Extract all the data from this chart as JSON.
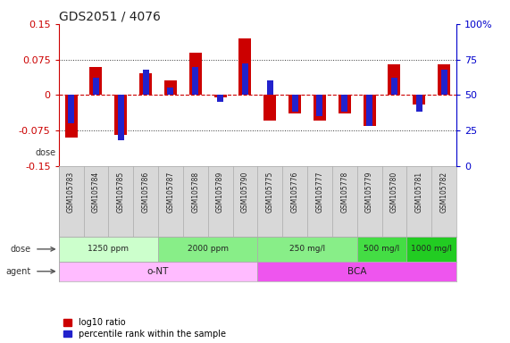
{
  "title": "GDS2051 / 4076",
  "samples": [
    "GSM105783",
    "GSM105784",
    "GSM105785",
    "GSM105786",
    "GSM105787",
    "GSM105788",
    "GSM105789",
    "GSM105790",
    "GSM105775",
    "GSM105776",
    "GSM105777",
    "GSM105778",
    "GSM105779",
    "GSM105780",
    "GSM105781",
    "GSM105782"
  ],
  "log10_ratio": [
    -0.09,
    0.06,
    -0.085,
    0.045,
    0.03,
    0.09,
    -0.005,
    0.12,
    -0.055,
    -0.04,
    -0.055,
    -0.04,
    -0.065,
    0.065,
    -0.02,
    0.065
  ],
  "percentile_rank": [
    30,
    62,
    18,
    68,
    55,
    70,
    45,
    72,
    60,
    38,
    35,
    38,
    28,
    62,
    38,
    68
  ],
  "ylim": [
    -0.15,
    0.15
  ],
  "yticks_left": [
    -0.15,
    -0.075,
    0.0,
    0.075,
    0.15
  ],
  "yticks_right": [
    0,
    25,
    50,
    75,
    100
  ],
  "bar_color_red": "#cc0000",
  "bar_color_blue": "#2222cc",
  "dose_groups": [
    {
      "label": "1250 ppm",
      "start": 0,
      "end": 4,
      "color": "#ccffcc"
    },
    {
      "label": "2000 ppm",
      "start": 4,
      "end": 8,
      "color": "#88ee88"
    },
    {
      "label": "250 mg/l",
      "start": 8,
      "end": 12,
      "color": "#88ee88"
    },
    {
      "label": "500 mg/l",
      "start": 12,
      "end": 14,
      "color": "#44dd44"
    },
    {
      "label": "1000 mg/l",
      "start": 14,
      "end": 16,
      "color": "#22cc22"
    }
  ],
  "agent_groups": [
    {
      "label": "o-NT",
      "start": 0,
      "end": 8,
      "color": "#ffbbff"
    },
    {
      "label": "BCA",
      "start": 8,
      "end": 16,
      "color": "#ee55ee"
    }
  ],
  "legend_red": "log10 ratio",
  "legend_blue": "percentile rank within the sample",
  "bar_width": 0.5,
  "blue_bar_width": 0.25,
  "axis_color_left": "#cc0000",
  "axis_color_right": "#0000cc",
  "bg_color": "#ffffff",
  "label_bg_color": "#d8d8d8",
  "dose_label": "dose",
  "agent_label": "agent"
}
